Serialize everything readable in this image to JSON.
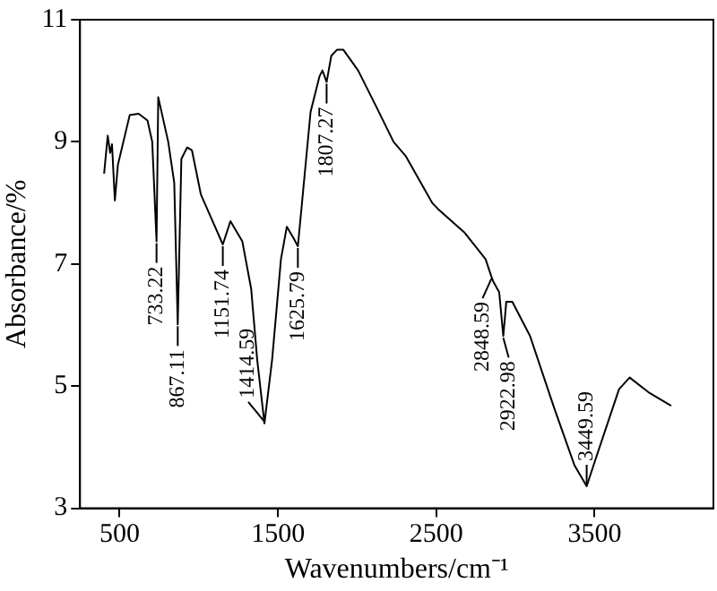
{
  "chart_data": {
    "type": "line",
    "xlabel": "Wavenumbers/cm⁻¹",
    "ylabel": "Absorbance/%",
    "xlim": [
      250,
      4250
    ],
    "xticks": [
      500,
      1500,
      2500,
      3500
    ],
    "ylim": [
      3,
      11
    ],
    "yticks": [
      3,
      5,
      7,
      9,
      11
    ],
    "grid": false,
    "legend": false,
    "marker": "none",
    "line_style": "solid",
    "series": [
      {
        "color": "#000000",
        "x": [
          402,
          425,
          440,
          452,
          470,
          489,
          564,
          620,
          676,
          706,
          733.22,
          744,
          807,
          845,
          867.11,
          890,
          927,
          957,
          1013,
          1151.74,
          1200,
          1275,
          1331,
          1369,
          1414.59,
          1463,
          1519,
          1556,
          1601,
          1625.79,
          1650,
          1706,
          1762,
          1781,
          1807.27,
          1837,
          1874,
          1912,
          2006,
          2118,
          2230,
          2306,
          2474,
          2511,
          2680,
          2811,
          2848.59,
          2860,
          2897,
          2922.98,
          2942,
          2980,
          3092,
          3242,
          3373,
          3449.59,
          3504,
          3654,
          3721,
          3840,
          3983
        ],
        "values": [
          8.48,
          9.1,
          8.82,
          8.96,
          8.04,
          8.62,
          9.44,
          9.46,
          9.35,
          9.0,
          7.37,
          9.73,
          9.0,
          8.33,
          6.01,
          8.72,
          8.91,
          8.86,
          8.14,
          7.32,
          7.7,
          7.37,
          6.59,
          5.43,
          4.39,
          5.43,
          7.08,
          7.61,
          7.41,
          7.29,
          7.95,
          9.49,
          10.07,
          10.17,
          9.98,
          10.41,
          10.51,
          10.51,
          10.17,
          9.59,
          9.0,
          8.77,
          8.0,
          7.9,
          7.51,
          7.08,
          6.79,
          6.71,
          6.54,
          5.82,
          6.38,
          6.38,
          5.82,
          4.66,
          3.7,
          3.36,
          3.79,
          4.95,
          5.14,
          4.9,
          4.68
        ]
      }
    ],
    "annotations": [
      {
        "text": "733.22",
        "x": 733.22,
        "y": 7.37
      },
      {
        "text": "867.11",
        "x": 867.11,
        "y": 6.01
      },
      {
        "text": "1151.74",
        "x": 1151.74,
        "y": 7.32
      },
      {
        "text": "1414.59",
        "x": 1414.59,
        "y": 4.39
      },
      {
        "text": "1625.79",
        "x": 1625.79,
        "y": 7.29
      },
      {
        "text": "1807.27",
        "x": 1807.27,
        "y": 9.98
      },
      {
        "text": "2848.59",
        "x": 2848.59,
        "y": 6.79
      },
      {
        "text": "2922.98",
        "x": 2922.98,
        "y": 5.82
      },
      {
        "text": "3449.59",
        "x": 3449.59,
        "y": 3.36
      }
    ]
  }
}
